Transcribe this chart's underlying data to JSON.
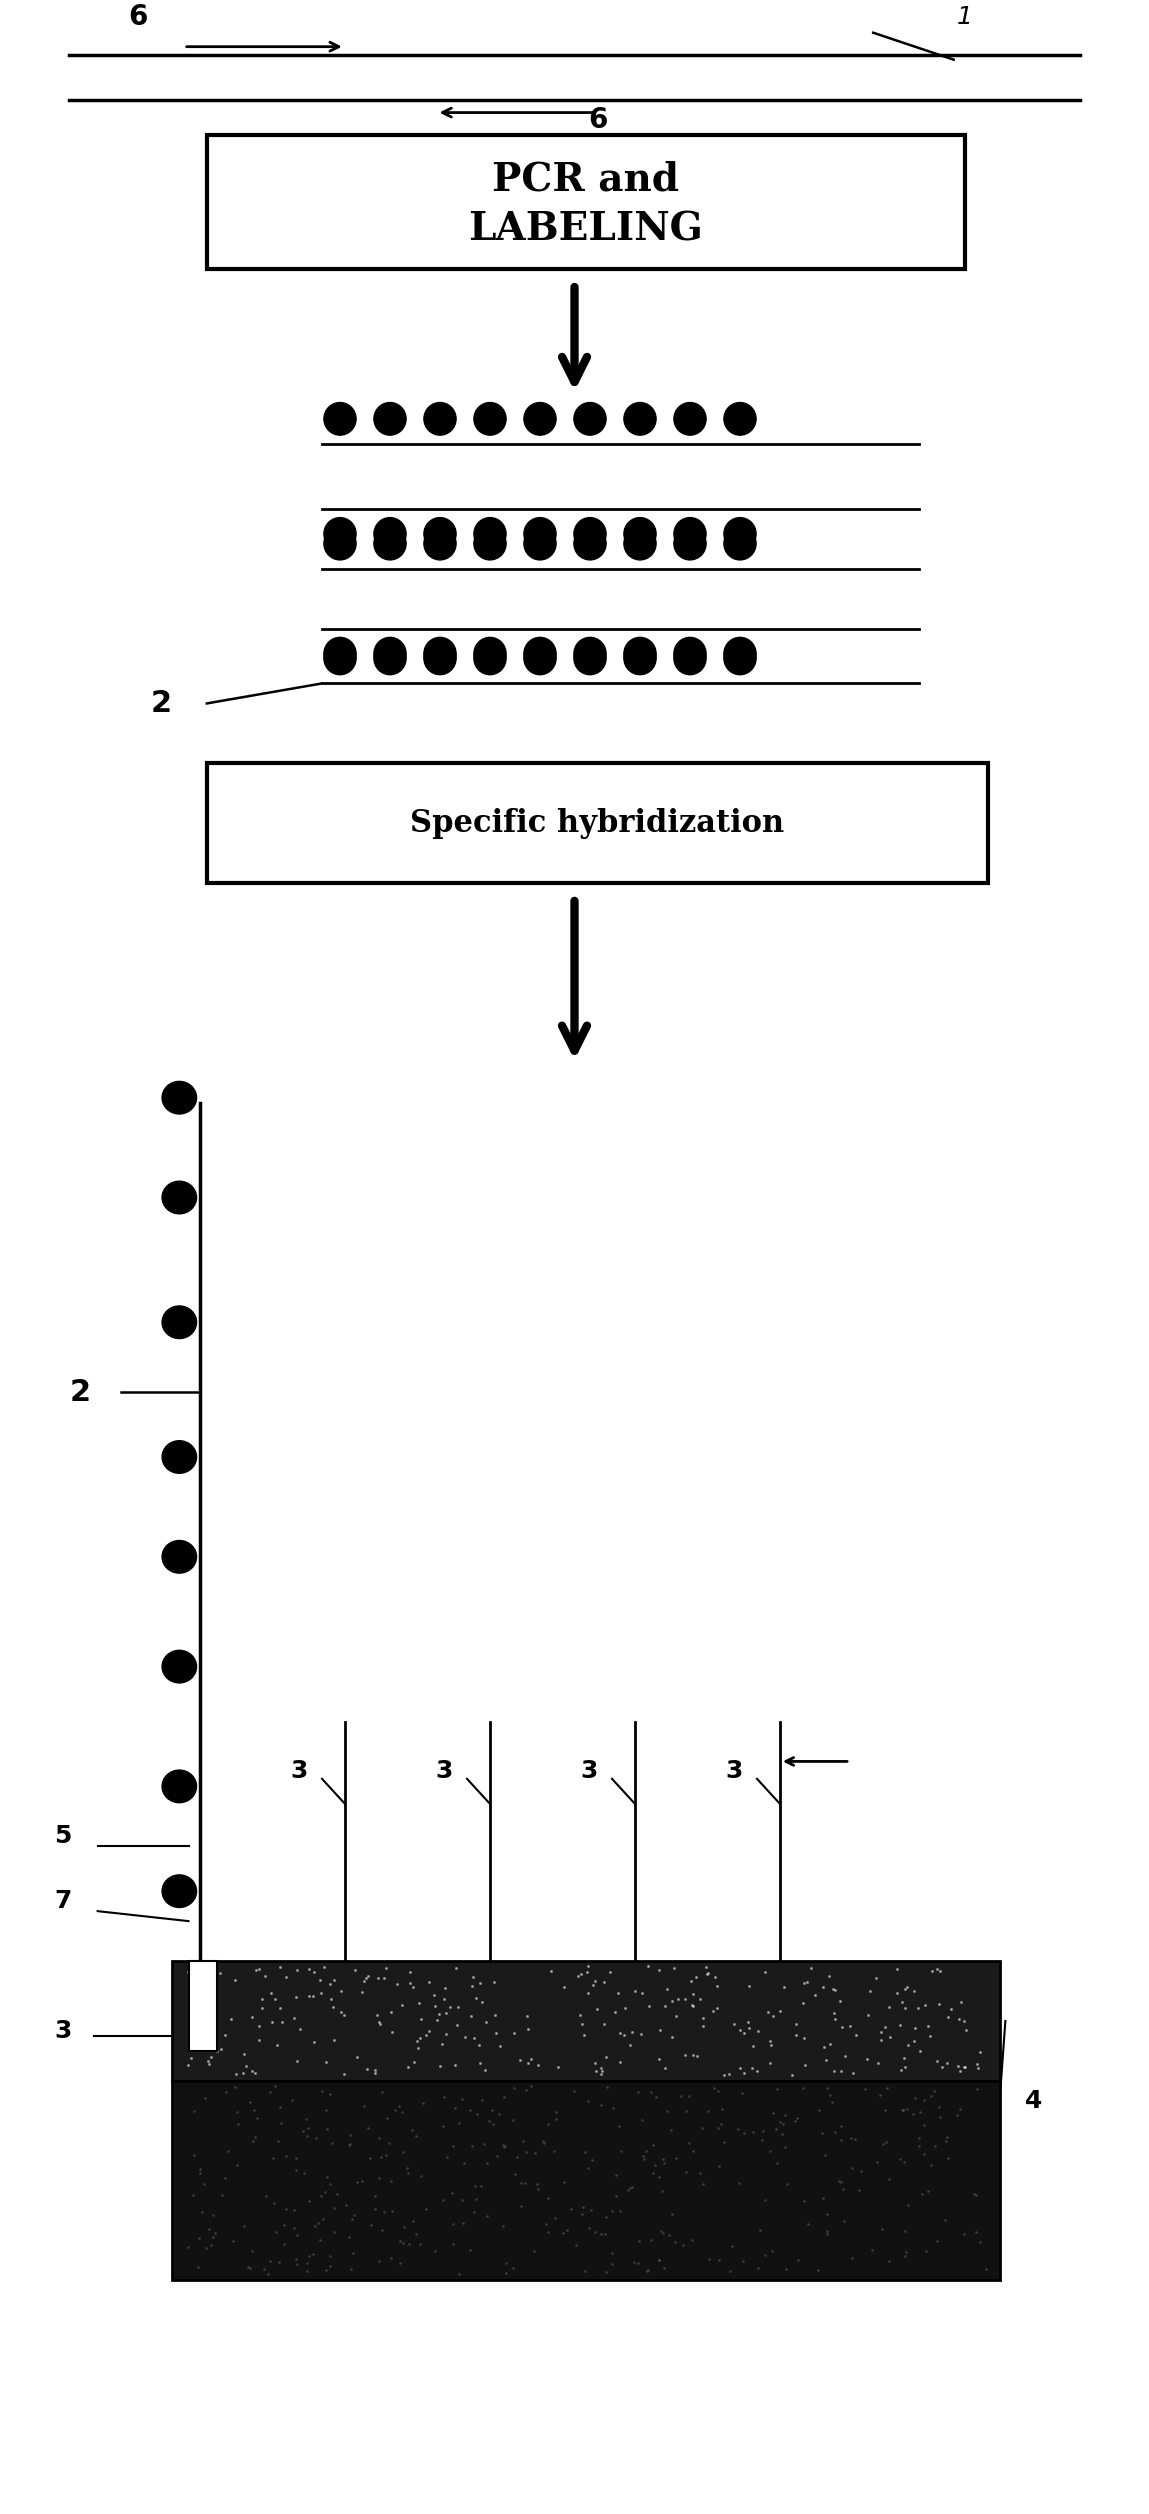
{
  "fig_width": 11.49,
  "fig_height": 25.14,
  "bg_color": "#ffffff",
  "strand_color": "#000000",
  "box1_text_line1": "PCR and",
  "box1_text_line2": "LABELING",
  "box2_text": "Specific hybridization",
  "membrane_color": "#2a2a2a",
  "substrate_color": "#555555",
  "label1": "1",
  "label2": "2",
  "label3": "3",
  "label4": "4",
  "label5": "5",
  "label6": "6",
  "label7": "7"
}
